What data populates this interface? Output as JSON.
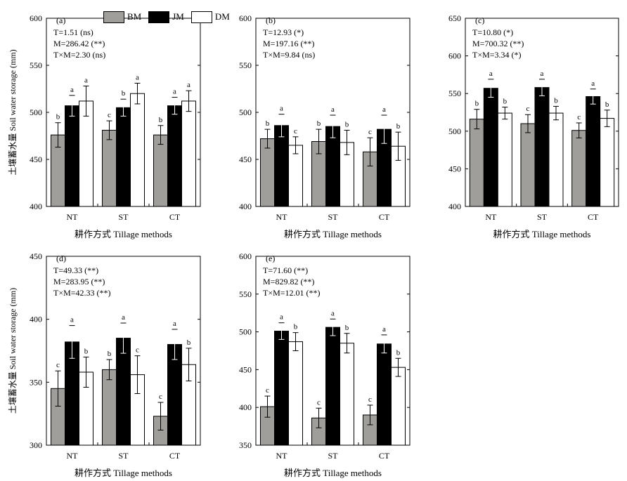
{
  "legend": {
    "placement": "top-left",
    "items": [
      {
        "name": "BM",
        "color": "#a09e9a"
      },
      {
        "name": "JM",
        "color": "#000000"
      },
      {
        "name": "DM",
        "color": "#ffffff"
      }
    ]
  },
  "chart_data": [
    {
      "type": "bar",
      "panel": "(a)",
      "ylim": [
        400,
        600
      ],
      "yticks": [
        400,
        450,
        500,
        550,
        600
      ],
      "categories": [
        "NT",
        "ST",
        "CT"
      ],
      "ylabel": "土壤蓄水量 Soil water storage (mm)",
      "xlabel": "耕作方式 Tillage methods",
      "stats": [
        "T=1.51 (ns)",
        "M=286.42 (**)",
        "T×M=2.30 (ns)"
      ],
      "series": [
        {
          "name": "BM",
          "values": [
            476,
            481,
            476
          ],
          "errors": [
            13,
            10,
            10
          ],
          "letters": [
            "b",
            "c",
            "b"
          ]
        },
        {
          "name": "JM",
          "values": [
            507,
            505,
            507
          ],
          "errors": [
            11,
            9,
            9
          ],
          "letters": [
            "a",
            "b",
            "a"
          ]
        },
        {
          "name": "DM",
          "values": [
            512,
            520,
            512
          ],
          "errors": [
            16,
            11,
            11
          ],
          "letters": [
            "a",
            "a",
            "a"
          ]
        }
      ]
    },
    {
      "type": "bar",
      "panel": "(b)",
      "ylim": [
        400,
        600
      ],
      "yticks": [
        400,
        450,
        500,
        550,
        600
      ],
      "categories": [
        "NT",
        "ST",
        "CT"
      ],
      "ylabel": "",
      "xlabel": "耕作方式 Tillage methods",
      "stats": [
        "T=12.93 (*)",
        "M=197.16 (**)",
        "T×M=9.84 (ns)"
      ],
      "series": [
        {
          "name": "BM",
          "values": [
            472,
            469,
            458
          ],
          "errors": [
            10,
            13,
            15
          ],
          "letters": [
            "b",
            "b",
            "c"
          ]
        },
        {
          "name": "JM",
          "values": [
            486,
            485,
            482
          ],
          "errors": [
            12,
            12,
            15
          ],
          "letters": [
            "a",
            "a",
            "a"
          ]
        },
        {
          "name": "DM",
          "values": [
            465,
            468,
            464
          ],
          "errors": [
            9,
            13,
            15
          ],
          "letters": [
            "c",
            "b",
            "b"
          ]
        }
      ]
    },
    {
      "type": "bar",
      "panel": "(c)",
      "ylim": [
        400,
        650
      ],
      "yticks": [
        400,
        450,
        500,
        550,
        600,
        650
      ],
      "categories": [
        "NT",
        "ST",
        "CT"
      ],
      "ylabel": "",
      "xlabel": "耕作方式 Tillage methods",
      "stats": [
        "T=10.80 (*)",
        "M=700.32 (**)",
        "T×M=3.34 (*)"
      ],
      "series": [
        {
          "name": "BM",
          "values": [
            516,
            510,
            501
          ],
          "errors": [
            13,
            12,
            10
          ],
          "letters": [
            "b",
            "c",
            "c"
          ]
        },
        {
          "name": "JM",
          "values": [
            557,
            558,
            546
          ],
          "errors": [
            12,
            11,
            10
          ],
          "letters": [
            "a",
            "a",
            "a"
          ]
        },
        {
          "name": "DM",
          "values": [
            524,
            524,
            517
          ],
          "errors": [
            8,
            9,
            11
          ],
          "letters": [
            "b",
            "b",
            "b"
          ]
        }
      ]
    },
    {
      "type": "bar",
      "panel": "(d)",
      "ylim": [
        300,
        450
      ],
      "yticks": [
        300,
        350,
        400,
        450
      ],
      "categories": [
        "NT",
        "ST",
        "CT"
      ],
      "ylabel": "土壤蓄水量 Soil water storage (mm)",
      "xlabel": "耕作方式 Tillage methods",
      "stats": [
        "T=49.33 (**)",
        "M=283.95 (**)",
        "T×M=42.33 (**)"
      ],
      "series": [
        {
          "name": "BM",
          "values": [
            345,
            360,
            323
          ],
          "errors": [
            14,
            8,
            11
          ],
          "letters": [
            "c",
            "b",
            "c"
          ]
        },
        {
          "name": "JM",
          "values": [
            382,
            385,
            380
          ],
          "errors": [
            13,
            12,
            12
          ],
          "letters": [
            "a",
            "a",
            "a"
          ]
        },
        {
          "name": "DM",
          "values": [
            358,
            356,
            364
          ],
          "errors": [
            12,
            15,
            13
          ],
          "letters": [
            "b",
            "c",
            "b"
          ]
        }
      ]
    },
    {
      "type": "bar",
      "panel": "(e)",
      "ylim": [
        350,
        600
      ],
      "yticks": [
        350,
        400,
        450,
        500,
        550,
        600
      ],
      "categories": [
        "NT",
        "ST",
        "CT"
      ],
      "ylabel": "",
      "xlabel": "耕作方式 Tillage methods",
      "stats": [
        "T=71.60 (**)",
        "M=829.82 (**)",
        "T×M=12.01 (**)"
      ],
      "series": [
        {
          "name": "BM",
          "values": [
            401,
            386,
            390
          ],
          "errors": [
            14,
            13,
            13
          ],
          "letters": [
            "c",
            "c",
            "c"
          ]
        },
        {
          "name": "JM",
          "values": [
            501,
            506,
            484
          ],
          "errors": [
            11,
            11,
            12
          ],
          "letters": [
            "a",
            "a",
            "a"
          ]
        },
        {
          "name": "DM",
          "values": [
            487,
            485,
            453
          ],
          "errors": [
            12,
            13,
            12
          ],
          "letters": [
            "b",
            "b",
            "b"
          ]
        }
      ]
    }
  ]
}
